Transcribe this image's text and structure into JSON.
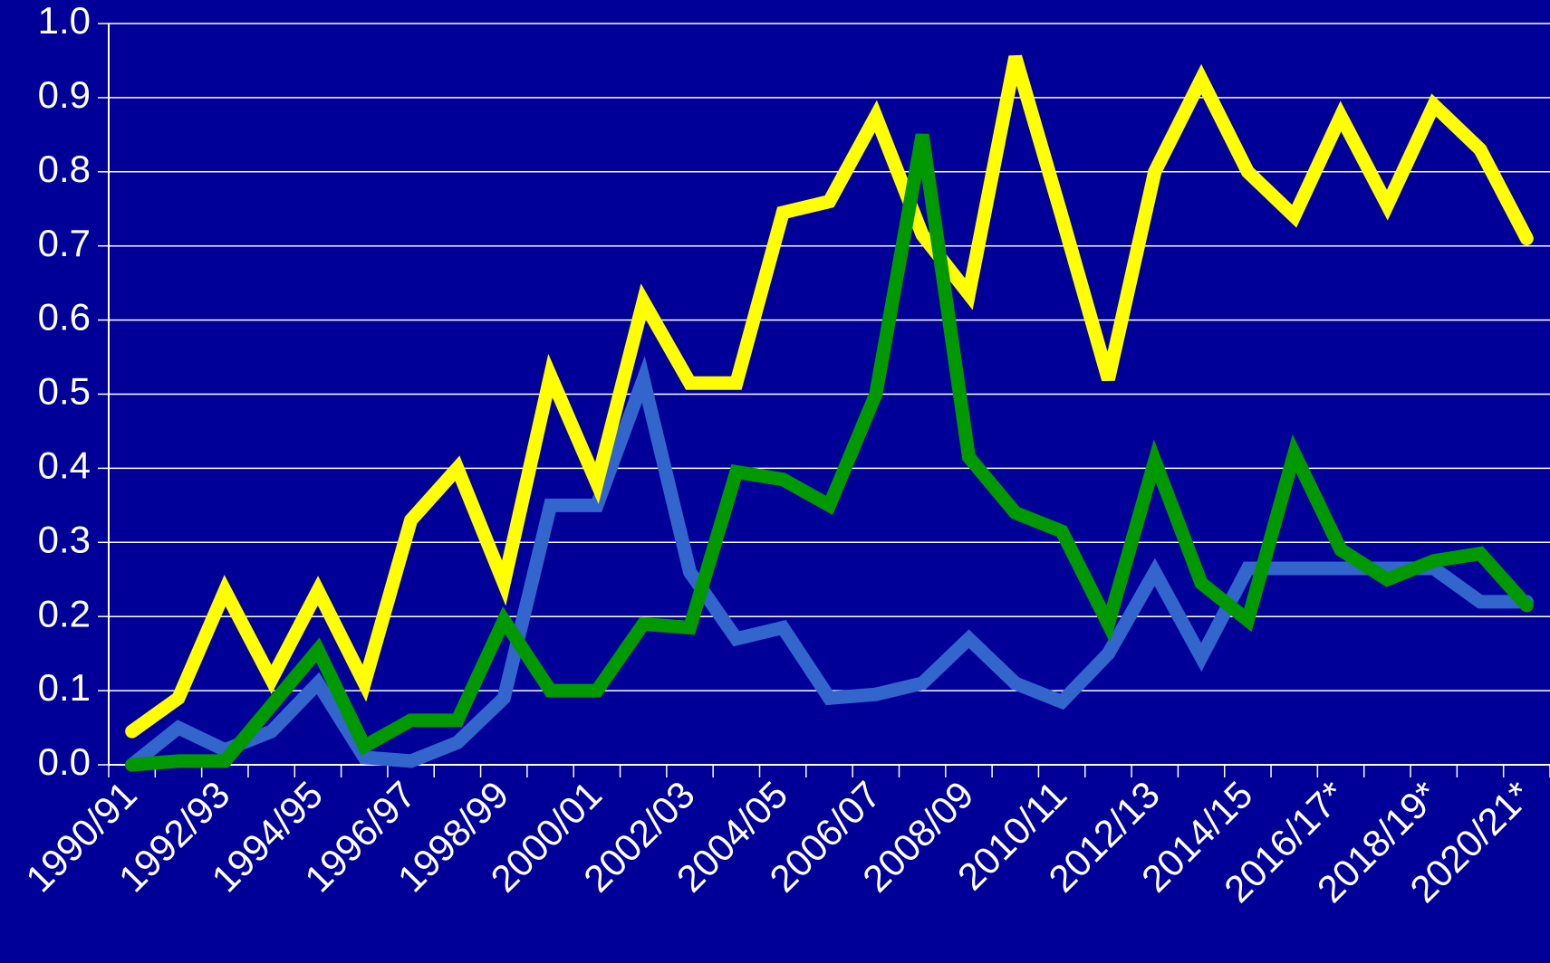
{
  "chart_data": {
    "type": "line",
    "categories": [
      "1990/91",
      null,
      "1992/93",
      null,
      "1994/95",
      null,
      "1996/97",
      null,
      "1998/99",
      null,
      "2000/01",
      null,
      "2002/03",
      null,
      "2004/05",
      null,
      "2006/07",
      null,
      "2008/09",
      null,
      "2010/11",
      null,
      "2012/13",
      null,
      "2014/15",
      null,
      "2016/17*",
      null,
      "2018/19*",
      null,
      "2020/21*"
    ],
    "series": [
      {
        "color": "#3366cc",
        "values": [
          0.0,
          0.05,
          0.02,
          0.045,
          0.11,
          0.01,
          0.005,
          0.03,
          0.09,
          0.35,
          0.35,
          0.52,
          0.26,
          0.17,
          0.185,
          0.09,
          0.095,
          0.11,
          0.17,
          0.11,
          0.085,
          0.15,
          0.26,
          0.145,
          0.265,
          0.265,
          0.265,
          0.265,
          0.265,
          0.22,
          0.22
        ]
      },
      {
        "color": "#ffff00",
        "values": [
          0.045,
          0.09,
          0.235,
          0.115,
          0.235,
          0.11,
          0.33,
          0.4,
          0.245,
          0.525,
          0.38,
          0.625,
          0.515,
          0.515,
          0.745,
          0.76,
          0.875,
          0.715,
          0.635,
          0.955,
          0.74,
          0.52,
          0.8,
          0.925,
          0.8,
          0.74,
          0.875,
          0.755,
          0.89,
          0.83,
          0.71
        ]
      },
      {
        "color": "#009900",
        "values": [
          0.0,
          0.005,
          0.005,
          0.08,
          0.155,
          0.025,
          0.06,
          0.06,
          0.195,
          0.1,
          0.1,
          0.19,
          0.185,
          0.395,
          0.385,
          0.35,
          0.5,
          0.85,
          0.415,
          0.34,
          0.315,
          0.19,
          0.41,
          0.245,
          0.195,
          0.42,
          0.29,
          0.25,
          0.275,
          0.285,
          0.215
        ]
      }
    ],
    "ylim": [
      0,
      1
    ],
    "yticks": [
      {
        "value": 0,
        "label": "0.0"
      },
      0.1,
      0.2,
      0.3,
      0.4,
      0.5,
      0.6,
      0.7,
      0.8,
      0.9,
      {
        "value": 1,
        "label": "1.0"
      }
    ],
    "grid": true
  }
}
